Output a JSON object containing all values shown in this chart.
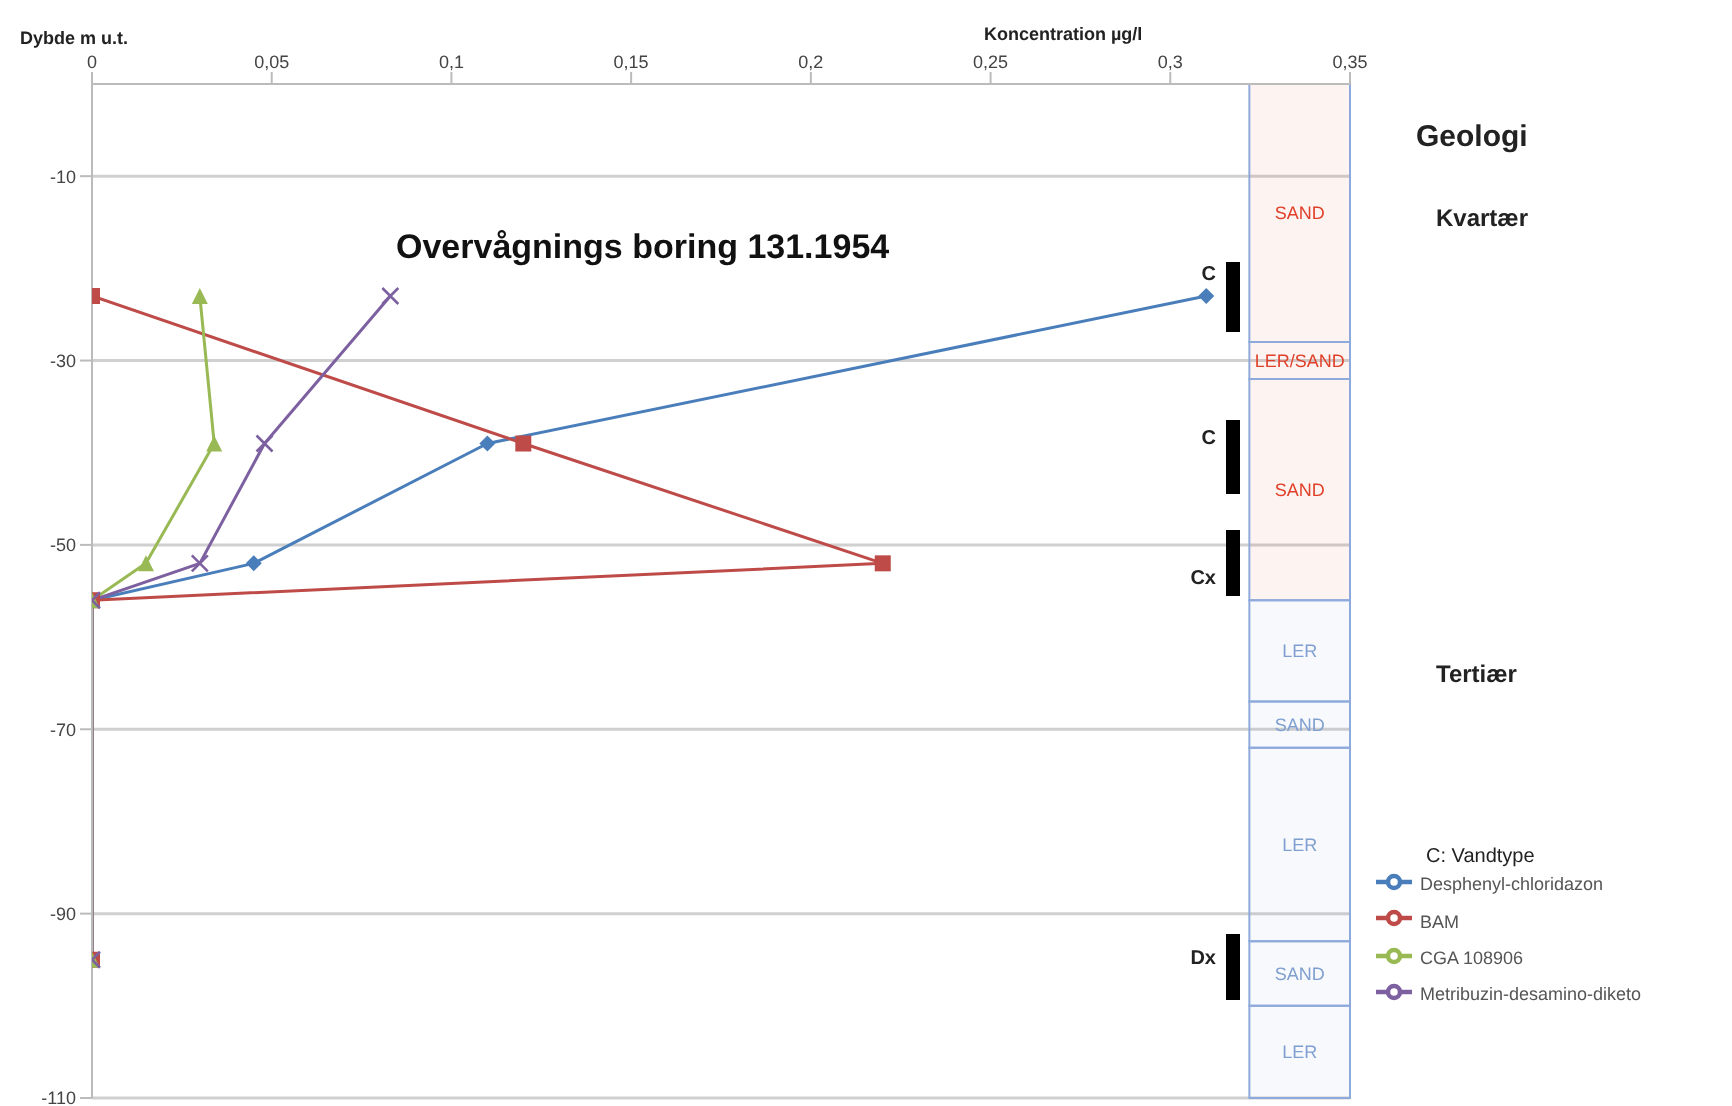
{
  "chart_data": {
    "type": "line",
    "title": "Overvågnings boring 131.1954",
    "xlabel": "Koncentration µg/l",
    "ylabel": "Dybde m u.t.",
    "xlim": [
      0,
      0.35
    ],
    "xticks": [
      0,
      {
        "value": 0.05,
        "label": "0,05"
      },
      {
        "value": 0.1,
        "label": "0,1"
      },
      {
        "value": 0.15,
        "label": "0,15"
      },
      {
        "value": 0.2,
        "label": "0,2"
      },
      {
        "value": 0.25,
        "label": "0,25"
      },
      {
        "value": 0.3,
        "label": "0,3"
      },
      {
        "value": 0.35,
        "label": "0,35"
      }
    ],
    "ylim": [
      -110,
      0
    ],
    "yticks": [
      -10,
      -30,
      -50,
      -70,
      -90,
      -110
    ],
    "grid": "y",
    "legend": "right",
    "series": [
      {
        "name": "Desphenyl-chloridazon",
        "color": "#4a7ebb",
        "marker": "diamond",
        "x": [
          0.31,
          0.11,
          0.045,
          0,
          0
        ],
        "values": [
          -23,
          -39,
          -52,
          -56,
          -95
        ]
      },
      {
        "name": "BAM",
        "color": "#be4b48",
        "marker": "square",
        "x": [
          0,
          0.12,
          0.22,
          0,
          0
        ],
        "values": [
          -23,
          -39,
          -52,
          -56,
          -95
        ]
      },
      {
        "name": "CGA 108906",
        "color": "#98b954",
        "marker": "triangle",
        "x": [
          0.03,
          0.034,
          0.015,
          0,
          0
        ],
        "values": [
          -23,
          -39,
          -52,
          -56,
          -95
        ]
      },
      {
        "name": "Metribuzin-desamino-diketo",
        "color": "#7d60a0",
        "marker": "cross",
        "x": [
          0.083,
          0.048,
          0.03,
          0,
          0
        ],
        "values": [
          -23,
          -39,
          -52,
          -56,
          -95
        ]
      }
    ],
    "bands": [
      {
        "axis": "y",
        "from": 0,
        "to": -28,
        "label": "SAND",
        "color": "#e0402a"
      },
      {
        "axis": "y",
        "from": -28,
        "to": -32,
        "label": "LER/SAND",
        "color": "#e0402a"
      },
      {
        "axis": "y",
        "from": -32,
        "to": -56,
        "label": "SAND",
        "color": "#e0402a"
      },
      {
        "axis": "y",
        "from": -56,
        "to": -67,
        "label": "LER",
        "color": "#7f9fd0"
      },
      {
        "axis": "y",
        "from": -67,
        "to": -72,
        "label": "SAND",
        "color": "#7f9fd0"
      },
      {
        "axis": "y",
        "from": -72,
        "to": -93,
        "label": "LER",
        "color": "#7f9fd0"
      },
      {
        "axis": "y",
        "from": -93,
        "to": -100,
        "label": "SAND",
        "color": "#7f9fd0"
      },
      {
        "axis": "y",
        "from": -100,
        "to": -110,
        "label": "LER",
        "color": "#7f9fd0"
      }
    ],
    "annotations": [
      "Geologi",
      "Kvartær",
      "Tertiær",
      "C: Vandtype",
      "C",
      "C",
      "Cx",
      "Dx"
    ]
  }
}
